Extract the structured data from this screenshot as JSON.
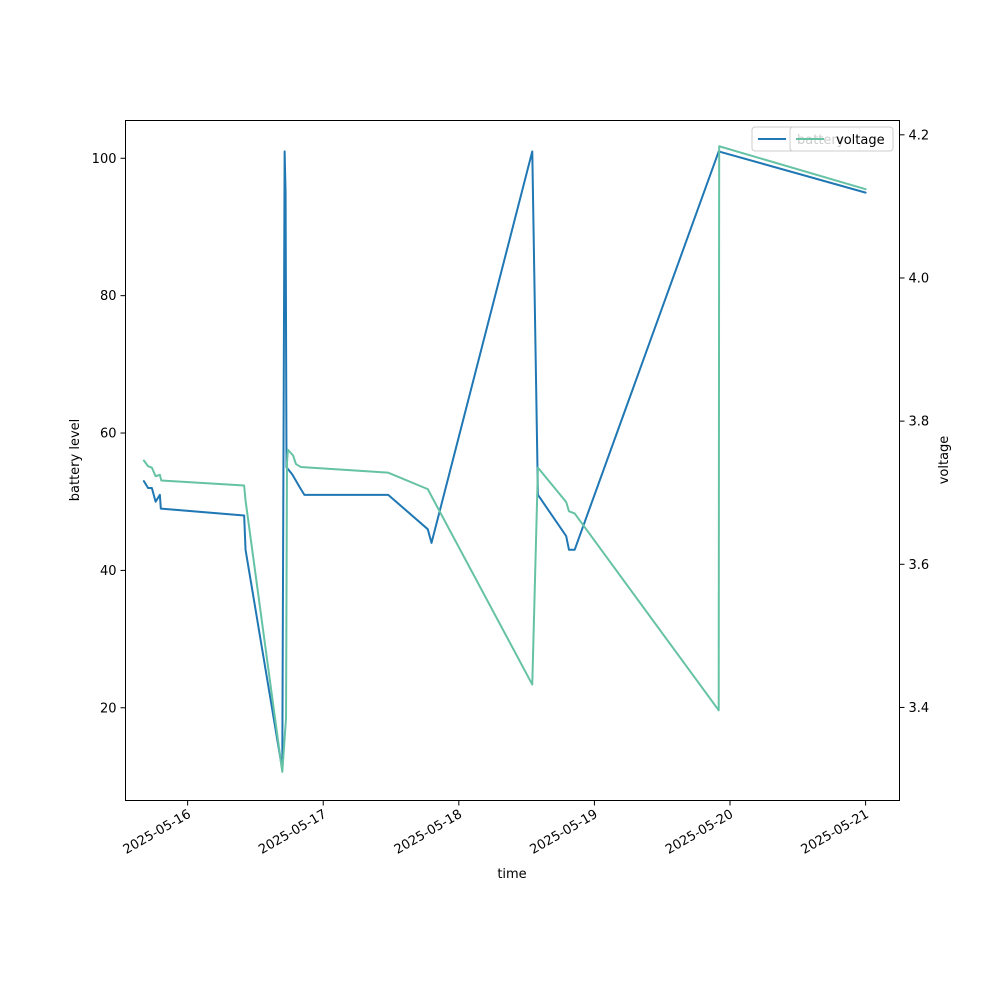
{
  "chart_data": {
    "type": "line",
    "title": "",
    "xlabel": "time",
    "ylabel_left": "battery level",
    "ylabel_right": "voltage",
    "x_axis": "date",
    "xlim": [
      "2025-05-15T13:00",
      "2025-05-21T06:00"
    ],
    "ylim_left": [
      6.5,
      105.5
    ],
    "ylim_right": [
      3.27,
      4.22
    ],
    "x_ticks": [
      "2025-05-16",
      "2025-05-17",
      "2025-05-18",
      "2025-05-19",
      "2025-05-20",
      "2025-05-21"
    ],
    "y_ticks_left": [
      "20",
      "40",
      "60",
      "80",
      "100"
    ],
    "y_ticks_right": [
      "3.4",
      "3.6",
      "3.8",
      "4.0",
      "4.2"
    ],
    "grid": false,
    "legend_position": "top-right",
    "legend": [
      "battery",
      "voltage"
    ],
    "series": [
      {
        "name": "battery",
        "axis": "left",
        "color": "#1f77b4",
        "points": [
          [
            "2025-05-15T16:15",
            53
          ],
          [
            "2025-05-15T17:00",
            52
          ],
          [
            "2025-05-15T17:40",
            52
          ],
          [
            "2025-05-15T18:20",
            50
          ],
          [
            "2025-05-15T19:05",
            51
          ],
          [
            "2025-05-15T19:15",
            49
          ],
          [
            "2025-05-16T10:00",
            48
          ],
          [
            "2025-05-16T10:15",
            43
          ],
          [
            "2025-05-16T16:45",
            11
          ],
          [
            "2025-05-16T17:10",
            101
          ],
          [
            "2025-05-16T17:20",
            95
          ],
          [
            "2025-05-16T17:30",
            55
          ],
          [
            "2025-05-16T18:30",
            54
          ],
          [
            "2025-05-16T19:55",
            52
          ],
          [
            "2025-05-16T20:40",
            51
          ],
          [
            "2025-05-17T11:30",
            51
          ],
          [
            "2025-05-17T18:30",
            46
          ],
          [
            "2025-05-17T19:10",
            44
          ],
          [
            "2025-05-18T13:00",
            101
          ],
          [
            "2025-05-18T14:00",
            51
          ],
          [
            "2025-05-18T19:00",
            45
          ],
          [
            "2025-05-18T19:30",
            43
          ],
          [
            "2025-05-18T20:30",
            43
          ],
          [
            "2025-05-19T22:00",
            101
          ],
          [
            "2025-05-21T00:00",
            95
          ]
        ]
      },
      {
        "name": "voltage",
        "axis": "right",
        "color": "#66c2a5",
        "points": [
          [
            "2025-05-15T16:15",
            3.745
          ],
          [
            "2025-05-15T17:00",
            3.737
          ],
          [
            "2025-05-15T17:40",
            3.735
          ],
          [
            "2025-05-15T18:20",
            3.723
          ],
          [
            "2025-05-15T19:05",
            3.725
          ],
          [
            "2025-05-15T19:20",
            3.717
          ],
          [
            "2025-05-16T10:00",
            3.71
          ],
          [
            "2025-05-16T10:15",
            3.689
          ],
          [
            "2025-05-16T16:45",
            3.31
          ],
          [
            "2025-05-16T17:25",
            3.385
          ],
          [
            "2025-05-16T17:35",
            3.742
          ],
          [
            "2025-05-16T17:45",
            3.76
          ],
          [
            "2025-05-16T18:40",
            3.752
          ],
          [
            "2025-05-16T19:10",
            3.74
          ],
          [
            "2025-05-16T20:00",
            3.736
          ],
          [
            "2025-05-17T11:30",
            3.728
          ],
          [
            "2025-05-17T18:30",
            3.705
          ],
          [
            "2025-05-18T13:00",
            3.432
          ],
          [
            "2025-05-18T14:00",
            3.735
          ],
          [
            "2025-05-18T19:00",
            3.687
          ],
          [
            "2025-05-18T19:30",
            3.674
          ],
          [
            "2025-05-18T20:30",
            3.671
          ],
          [
            "2025-05-19T22:00",
            3.396
          ],
          [
            "2025-05-19T22:05",
            4.184
          ],
          [
            "2025-05-21T00:00",
            4.124
          ]
        ]
      }
    ]
  }
}
